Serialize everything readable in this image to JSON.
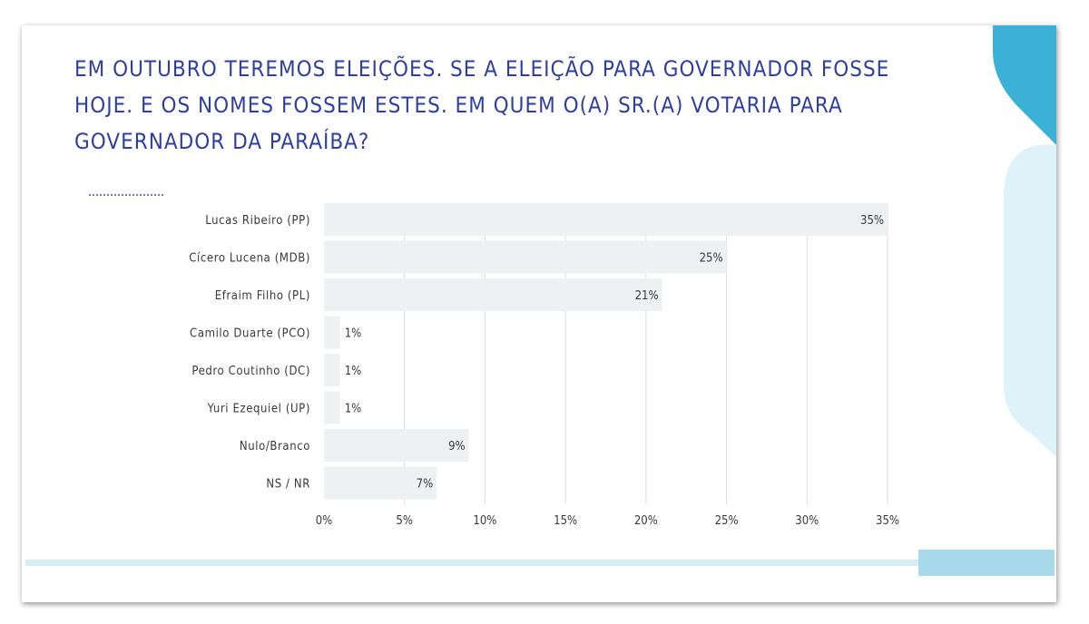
{
  "title": "EM OUTUBRO TEREMOS ELEIÇÕES. SE A ELEIÇÃO PARA GOVERNADOR FOSSE HOJE. E OS NOMES FOSSEM ESTES. EM QUEM O(A) SR.(A) VOTARIA PARA GOVERNADOR DA PARAÍBA?",
  "colors": {
    "title": "#2e3f9e",
    "bar": "#eef0f1",
    "grid": "#dedede",
    "accent_dark": "#3cb1d8",
    "accent_light": "#def2f9"
  },
  "chart_data": {
    "type": "bar",
    "orientation": "horizontal",
    "categories": [
      "Lucas Ribeiro (PP)",
      "Cícero Lucena (MDB)",
      "Efraim Filho (PL)",
      "Camilo Duarte (PCO)",
      "Pedro Coutinho (DC)",
      "Yuri Ezequiel (UP)",
      "Nulo/Branco",
      "NS / NR"
    ],
    "values": [
      35,
      25,
      21,
      1,
      1,
      1,
      9,
      7
    ],
    "value_labels": [
      "35%",
      "25%",
      "21%",
      "1%",
      "1%",
      "1%",
      "9%",
      "7%"
    ],
    "xlim": [
      0,
      35
    ],
    "xticks": [
      0,
      5,
      10,
      15,
      20,
      25,
      30,
      35
    ],
    "xtick_labels": [
      "0%",
      "5%",
      "10%",
      "15%",
      "20%",
      "25%",
      "30%",
      "35%"
    ],
    "grid": true,
    "legend": "none"
  }
}
